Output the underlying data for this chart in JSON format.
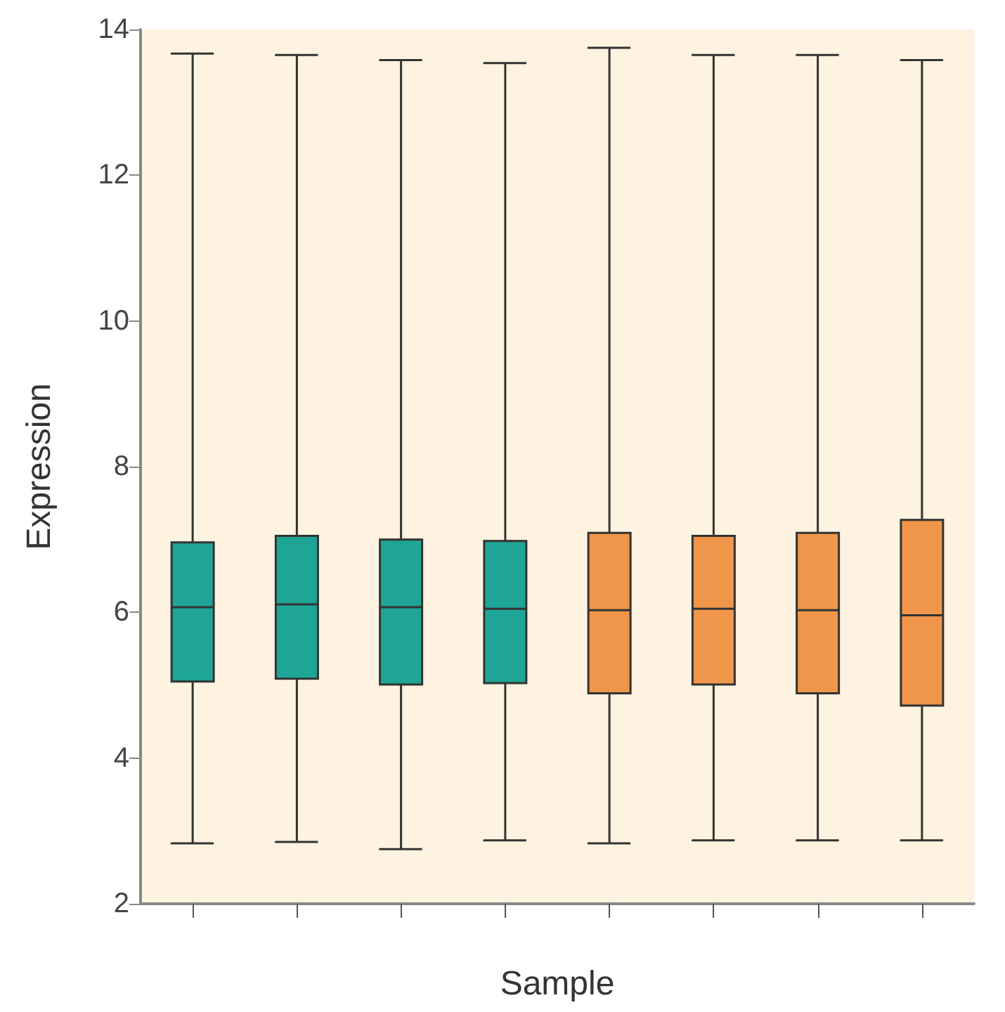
{
  "chart_data": {
    "type": "box",
    "xlabel": "Sample",
    "ylabel": "Expression",
    "categories": [
      null,
      null,
      null,
      null,
      null,
      null,
      null,
      null
    ],
    "ylim": [
      2,
      14
    ],
    "yticks": [
      2,
      4,
      6,
      8,
      10,
      12,
      14
    ],
    "tick_labels": "y",
    "grid": false,
    "colors": [
      "#1fa595",
      "#1fa595",
      "#1fa595",
      "#1fa595",
      "#f0964a",
      "#f0964a",
      "#f0964a",
      "#f0964a"
    ],
    "boxes": [
      {
        "low": 2.83,
        "q1": 5.05,
        "median": 6.07,
        "q3": 6.96,
        "high": 13.67
      },
      {
        "low": 2.85,
        "q1": 5.09,
        "median": 6.11,
        "q3": 7.05,
        "high": 13.65
      },
      {
        "low": 2.75,
        "q1": 5.01,
        "median": 6.07,
        "q3": 7.0,
        "high": 13.58
      },
      {
        "low": 2.87,
        "q1": 5.03,
        "median": 6.05,
        "q3": 6.98,
        "high": 13.54
      },
      {
        "low": 2.83,
        "q1": 4.89,
        "median": 6.03,
        "q3": 7.09,
        "high": 13.75
      },
      {
        "low": 2.87,
        "q1": 5.01,
        "median": 6.05,
        "q3": 7.05,
        "high": 13.65
      },
      {
        "low": 2.87,
        "q1": 4.89,
        "median": 6.03,
        "q3": 7.09,
        "high": 13.65
      },
      {
        "low": 2.87,
        "q1": 4.72,
        "median": 5.96,
        "q3": 7.27,
        "high": 13.58
      }
    ]
  }
}
